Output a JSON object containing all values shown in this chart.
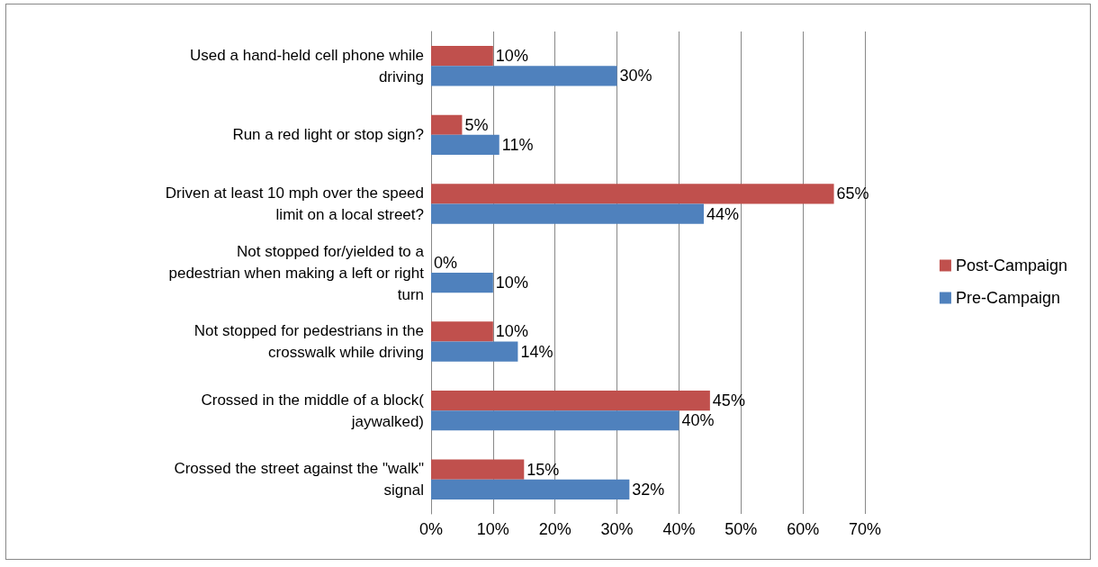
{
  "chart_data": {
    "type": "bar",
    "orientation": "horizontal",
    "categories": [
      "Used a hand-held cell phone while driving",
      "Run a red light or stop sign?",
      "Driven at least 10 mph over the speed limit on a local street?",
      "Not stopped for/yielded to a pedestrian when making a left or right turn",
      "Not stopped for pedestrians in the crosswalk while driving",
      "Crossed in the middle of a block( jaywalked)",
      "Crossed the street against the \"walk\" signal"
    ],
    "series": [
      {
        "name": "Post-Campaign",
        "color": "#c0504d",
        "values": [
          10,
          5,
          65,
          0,
          10,
          45,
          15
        ],
        "value_labels": [
          "10%",
          "5%",
          "65%",
          "0%",
          "10%",
          "45%",
          "15%"
        ]
      },
      {
        "name": "Pre-Campaign",
        "color": "#4f81bd",
        "values": [
          30,
          11,
          44,
          10,
          14,
          40,
          32
        ],
        "value_labels": [
          "30%",
          "11%",
          "44%",
          "10%",
          "14%",
          "40%",
          "32%"
        ]
      }
    ],
    "xlim": [
      0,
      70
    ],
    "xticks": [
      {
        "value": 0,
        "label": "0%"
      },
      {
        "value": 10,
        "label": "10%"
      },
      {
        "value": 20,
        "label": "20%"
      },
      {
        "value": 30,
        "label": "30%"
      },
      {
        "value": 40,
        "label": "40%"
      },
      {
        "value": 50,
        "label": "50%"
      },
      {
        "value": 60,
        "label": "60%"
      },
      {
        "value": 70,
        "label": "70%"
      }
    ],
    "grid": "x",
    "legend": "right"
  }
}
